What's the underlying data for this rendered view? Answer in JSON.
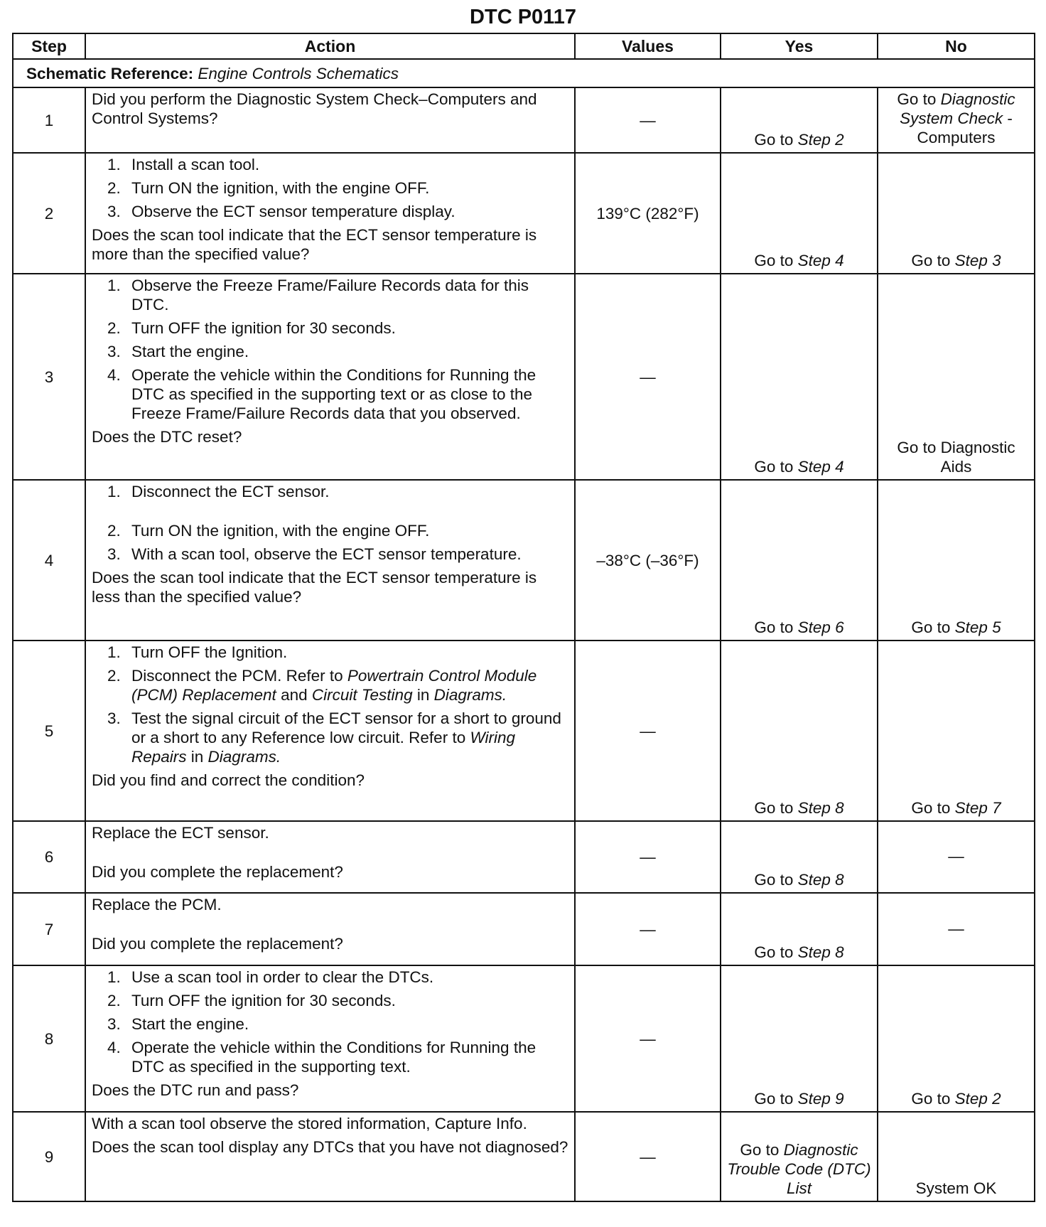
{
  "title": "DTC P0117",
  "headers": {
    "step": "Step",
    "action": "Action",
    "values": "Values",
    "yes": "Yes",
    "no": "No"
  },
  "schematic": {
    "label": "Schematic Reference:",
    "ref": "Engine Controls Schematics"
  },
  "rows": [
    {
      "step": "1",
      "action": [
        {
          "p": [
            {
              "t": "Did you perform the Diagnostic System Check–Computers and Control  Systems?"
            }
          ]
        }
      ],
      "values": "—",
      "yes": [
        {
          "t": "Go to "
        },
        {
          "t": "Step 2",
          "i": true
        }
      ],
      "no": [
        {
          "t": "Go to "
        },
        {
          "t": "Diagnostic System Check",
          "i": true
        },
        {
          "t": " - Computers"
        }
      ],
      "no_align": "top"
    },
    {
      "step": "2",
      "action": [
        {
          "n": "1.",
          "p": [
            {
              "t": "Install a scan tool."
            }
          ]
        },
        {
          "n": "2.",
          "p": [
            {
              "t": "Turn ON the ignition, with the engine OFF."
            }
          ]
        },
        {
          "n": "3.",
          "p": [
            {
              "t": "Observe the ECT sensor temperature display."
            }
          ]
        },
        {
          "p": [
            {
              "t": "Does the scan tool indicate that the ECT sensor temperature is more than the specified value?"
            }
          ]
        }
      ],
      "values": "139°C (282°F)",
      "yes": [
        {
          "t": "Go to "
        },
        {
          "t": "Step 4",
          "i": true
        }
      ],
      "no": [
        {
          "t": "Go to "
        },
        {
          "t": "Step 3",
          "i": true
        }
      ]
    },
    {
      "step": "3",
      "action": [
        {
          "n": "1.",
          "p": [
            {
              "t": "Observe the Freeze Frame/Failure Records data for this DTC."
            }
          ]
        },
        {
          "n": "2.",
          "p": [
            {
              "t": "Turn OFF the ignition for 30 seconds."
            }
          ]
        },
        {
          "n": "3.",
          "p": [
            {
              "t": "Start the engine."
            }
          ]
        },
        {
          "n": "4.",
          "p": [
            {
              "t": "Operate the vehicle within the Conditions for Running the DTC as specified in the supporting text or as close to the Freeze Frame/Failure Records data that you observed."
            }
          ]
        },
        {
          "p": [
            {
              "t": "Does the DTC reset?"
            }
          ]
        }
      ],
      "values": "—",
      "yes": [
        {
          "t": "Go to "
        },
        {
          "t": "Step 4",
          "i": true
        }
      ],
      "no": [
        {
          "t": "Go to Diagnostic Aids"
        }
      ]
    },
    {
      "step": "4",
      "action": [
        {
          "n": "1.",
          "p": [
            {
              "t": "Disconnect the ECT sensor."
            }
          ]
        },
        {
          "n": "2.",
          "p": [
            {
              "t": "Turn ON the ignition, with the engine OFF."
            }
          ],
          "gap": true
        },
        {
          "n": "3.",
          "p": [
            {
              "t": "With a scan tool, observe the ECT sensor temperature."
            }
          ]
        },
        {
          "p": [
            {
              "t": "Does the scan tool indicate that the ECT sensor temperature is less than the specified value?"
            }
          ]
        }
      ],
      "values": "–38°C (–36°F)",
      "yes": [
        {
          "t": "Go to "
        },
        {
          "t": "Step 6",
          "i": true
        }
      ],
      "no": [
        {
          "t": "Go to "
        },
        {
          "t": "Step 5",
          "i": true
        }
      ]
    },
    {
      "step": "5",
      "action": [
        {
          "n": "1.",
          "p": [
            {
              "t": "Turn OFF the Ignition."
            }
          ]
        },
        {
          "n": "2.",
          "p": [
            {
              "t": "Disconnect the PCM. Refer to "
            },
            {
              "t": "Powertrain Control Module (PCM) Replacement",
              "i": true
            },
            {
              "t": " and "
            },
            {
              "t": "Circuit Testing",
              "i": true
            },
            {
              "t": " in "
            },
            {
              "t": "Diagrams.",
              "i": true
            }
          ]
        },
        {
          "n": "3.",
          "p": [
            {
              "t": "Test the signal circuit of the ECT sensor for a short to ground or a short to any Reference low circuit. Refer to "
            },
            {
              "t": "Wiring Repairs",
              "i": true
            },
            {
              "t": " in "
            },
            {
              "t": "Diagrams.",
              "i": true
            }
          ]
        },
        {
          "p": [
            {
              "t": "Did you find and correct the condition?"
            }
          ]
        }
      ],
      "values": "—",
      "yes": [
        {
          "t": "Go to "
        },
        {
          "t": "Step 8",
          "i": true
        }
      ],
      "no": [
        {
          "t": "Go to "
        },
        {
          "t": "Step 7",
          "i": true
        }
      ]
    },
    {
      "step": "6",
      "action": [
        {
          "p": [
            {
              "t": "Replace the ECT sensor."
            }
          ]
        },
        {
          "p": [
            {
              "t": "Did you complete the replacement?"
            }
          ],
          "gap": true
        }
      ],
      "values": "—",
      "yes": [
        {
          "t": "Go to "
        },
        {
          "t": "Step 8",
          "i": true
        }
      ],
      "no": [
        {
          "t": "—"
        }
      ],
      "no_align": "mid"
    },
    {
      "step": "7",
      "action": [
        {
          "p": [
            {
              "t": "Replace the PCM."
            }
          ]
        },
        {
          "p": [
            {
              "t": "Did you complete the replacement?"
            }
          ],
          "gap": true
        }
      ],
      "values": "—",
      "yes": [
        {
          "t": "Go to "
        },
        {
          "t": "Step 8",
          "i": true
        }
      ],
      "no": [
        {
          "t": "—"
        }
      ],
      "no_align": "mid"
    },
    {
      "step": "8",
      "action": [
        {
          "n": "1.",
          "p": [
            {
              "t": "Use a scan tool in order to clear the DTCs."
            }
          ]
        },
        {
          "n": "2.",
          "p": [
            {
              "t": "Turn OFF the ignition for 30 seconds."
            }
          ]
        },
        {
          "n": "3.",
          "p": [
            {
              "t": "Start the engine."
            }
          ]
        },
        {
          "n": "4.",
          "p": [
            {
              "t": "Operate the vehicle within the Conditions for Running the DTC as specified in the supporting text."
            }
          ]
        },
        {
          "p": [
            {
              "t": "Does the DTC run and pass?"
            }
          ]
        }
      ],
      "values": "—",
      "yes": [
        {
          "t": "Go to "
        },
        {
          "t": "Step 9",
          "i": true
        }
      ],
      "no": [
        {
          "t": "Go to "
        },
        {
          "t": "Step 2",
          "i": true
        }
      ]
    },
    {
      "step": "9",
      "action": [
        {
          "p": [
            {
              "t": "With a scan tool observe the stored information, Capture Info."
            }
          ]
        },
        {
          "p": [
            {
              "t": "Does the scan tool display any DTCs that you have not diagnosed?"
            }
          ]
        }
      ],
      "values": "—",
      "yes": [
        {
          "t": "Go to "
        },
        {
          "t": "Diagnostic Trouble Code (DTC) List",
          "i": true
        }
      ],
      "no": [
        {
          "t": "System OK"
        }
      ]
    }
  ]
}
